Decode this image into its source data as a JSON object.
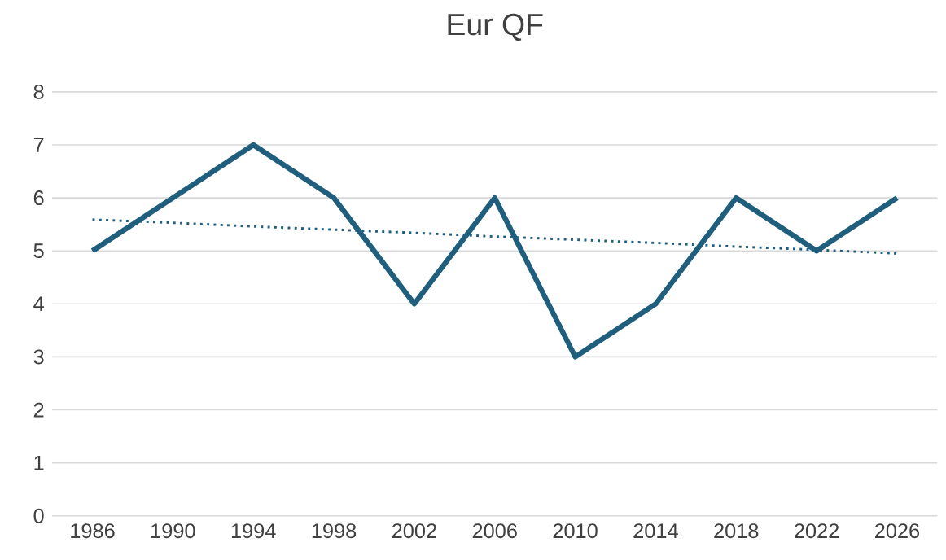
{
  "chart_data": {
    "type": "line",
    "title": "Eur QF",
    "categories": [
      "1986",
      "1990",
      "1994",
      "1998",
      "2002",
      "2006",
      "2010",
      "2014",
      "2018",
      "2022",
      "2026"
    ],
    "series": [
      {
        "color": "#1f5f7d",
        "values": [
          5,
          6,
          7,
          6,
          4,
          6,
          3,
          4,
          6,
          5,
          6
        ],
        "line_style": "solid"
      },
      {
        "color": "#1f5f7d",
        "values": [
          5.59,
          5.53,
          5.46,
          5.4,
          5.34,
          5.27,
          5.21,
          5.15,
          5.08,
          5.02,
          4.95
        ],
        "line_style": "dotted"
      }
    ],
    "ylim": [
      0,
      8
    ],
    "yticks": [
      0,
      1,
      2,
      3,
      4,
      5,
      6,
      7,
      8
    ],
    "grid": "y",
    "marker": "none"
  }
}
